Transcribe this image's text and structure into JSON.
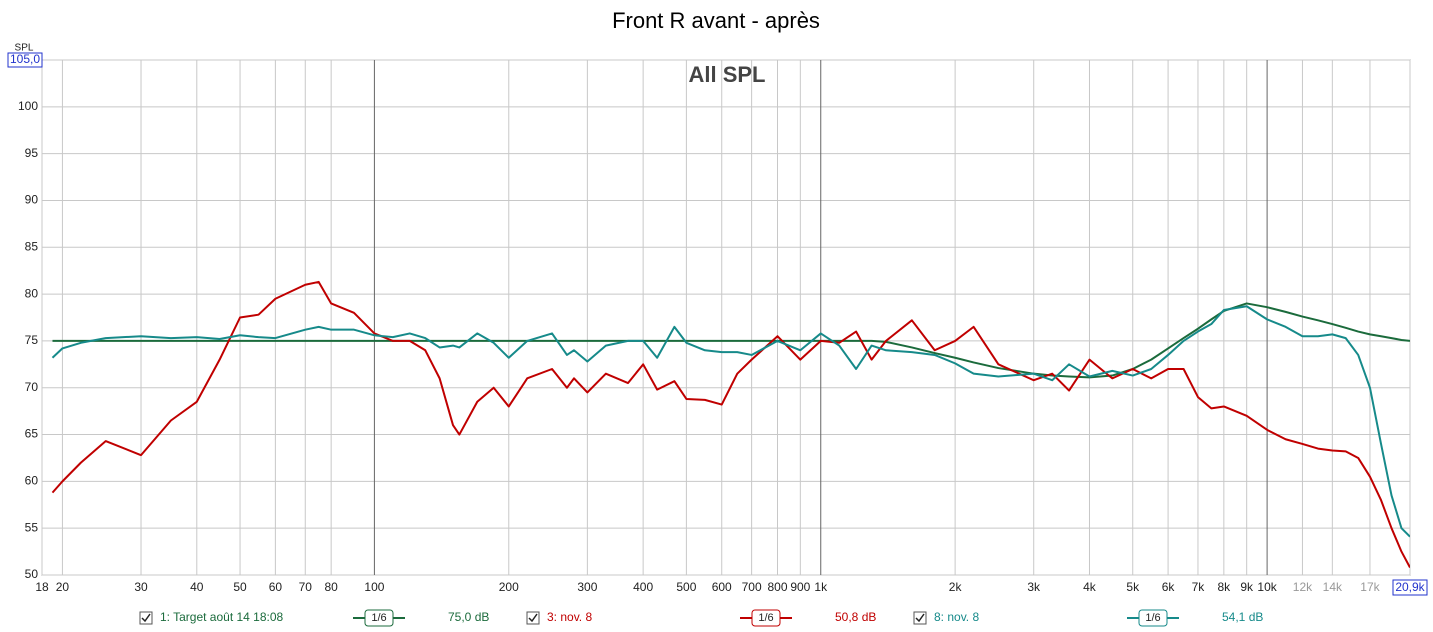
{
  "chart_data": {
    "type": "line",
    "title": "Front R avant - après",
    "subtitle": "All SPL",
    "y_label": "SPL",
    "x_scale": "log",
    "grid": true,
    "xlim": [
      18,
      20900
    ],
    "xticks": [
      18,
      20,
      30,
      40,
      50,
      60,
      70,
      80,
      100,
      200,
      300,
      400,
      500,
      600,
      700,
      800,
      900,
      {
        "value": 1000,
        "label": "1k"
      },
      {
        "value": 2000,
        "label": "2k"
      },
      {
        "value": 3000,
        "label": "3k"
      },
      {
        "value": 4000,
        "label": "4k"
      },
      {
        "value": 5000,
        "label": "5k"
      },
      {
        "value": 6000,
        "label": "6k"
      },
      {
        "value": 7000,
        "label": "7k"
      },
      {
        "value": 8000,
        "label": "8k"
      },
      {
        "value": 9000,
        "label": "9k"
      },
      {
        "value": 10000,
        "label": "10k"
      },
      {
        "value": 12000,
        "label": "12k"
      },
      {
        "value": 14000,
        "label": "14k"
      },
      {
        "value": 17000,
        "label": "17k"
      },
      {
        "value": 20900,
        "label": "20,9k"
      }
    ],
    "ylim": [
      50,
      105
    ],
    "yticks": [
      50,
      55,
      60,
      65,
      70,
      75,
      80,
      85,
      90,
      95,
      100,
      {
        "value": 105,
        "label": "105,0"
      }
    ],
    "x": [
      19,
      20,
      22,
      25,
      30,
      35,
      40,
      45,
      50,
      55,
      60,
      70,
      75,
      80,
      90,
      100,
      110,
      120,
      130,
      140,
      150,
      155,
      170,
      185,
      200,
      220,
      250,
      270,
      280,
      300,
      330,
      370,
      400,
      430,
      470,
      500,
      550,
      600,
      650,
      700,
      800,
      900,
      1000,
      1100,
      1200,
      1300,
      1400,
      1600,
      1800,
      2000,
      2200,
      2500,
      3000,
      3300,
      3600,
      4000,
      4500,
      5000,
      5500,
      6000,
      6500,
      7000,
      7500,
      8000,
      9000,
      10000,
      11000,
      12000,
      13000,
      14000,
      15000,
      16000,
      17000,
      18000,
      19000,
      20000,
      20900
    ],
    "series": [
      {
        "name": "1: Target août 14 18:08",
        "smoothing": "1/6",
        "level": "75,0 dB",
        "color": "#1b6b3c",
        "values": [
          75,
          75,
          75,
          75,
          75,
          75,
          75,
          75,
          75,
          75,
          75,
          75,
          75,
          75,
          75,
          75,
          75,
          75,
          75,
          75,
          75,
          75,
          75,
          75,
          75,
          75,
          75,
          75,
          75,
          75,
          75,
          75,
          75,
          75,
          75,
          75,
          75,
          75,
          75,
          75,
          75,
          75,
          75,
          75,
          75,
          75,
          74.9,
          74.3,
          73.7,
          73.2,
          72.7,
          72.1,
          71.5,
          71.3,
          71.2,
          71.1,
          71.3,
          72,
          73,
          74.2,
          75.3,
          76.3,
          77.3,
          78.2,
          79,
          78.6,
          78.1,
          77.6,
          77.2,
          76.8,
          76.4,
          76,
          75.7,
          75.5,
          75.3,
          75.1,
          75.0
        ]
      },
      {
        "name": "3: nov. 8",
        "smoothing": "1/6",
        "level": "50,8 dB",
        "color": "#c00000",
        "values": [
          58.8,
          60,
          62,
          64.3,
          62.8,
          66.5,
          68.5,
          73,
          77.5,
          77.8,
          79.5,
          81,
          81.3,
          79,
          78,
          75.8,
          75,
          75,
          74,
          71,
          66,
          65,
          68.5,
          70,
          68,
          71,
          72,
          70,
          71,
          69.5,
          71.5,
          70.5,
          72.5,
          69.8,
          70.7,
          68.8,
          68.7,
          68.2,
          71.5,
          73,
          75.5,
          73,
          75,
          74.8,
          76,
          73,
          75,
          77.2,
          74,
          75,
          76.5,
          72.5,
          70.8,
          71.5,
          69.7,
          73,
          71,
          72,
          71,
          72,
          72,
          69,
          67.8,
          68,
          67,
          65.5,
          64.5,
          64,
          63.5,
          63.3,
          63.2,
          62.5,
          60.5,
          58,
          55,
          52.5,
          50.8
        ]
      },
      {
        "name": "8: nov. 8",
        "smoothing": "1/6",
        "level": "54,1 dB",
        "color": "#168a8a",
        "values": [
          73.2,
          74.2,
          74.8,
          75.3,
          75.5,
          75.3,
          75.4,
          75.2,
          75.6,
          75.4,
          75.3,
          76.2,
          76.5,
          76.2,
          76.2,
          75.6,
          75.4,
          75.8,
          75.3,
          74.3,
          74.5,
          74.3,
          75.8,
          74.8,
          73.2,
          75,
          75.8,
          73.5,
          74,
          72.8,
          74.5,
          75,
          75,
          73.2,
          76.5,
          74.8,
          74,
          73.8,
          73.8,
          73.5,
          75,
          74,
          75.8,
          74.5,
          72,
          74.5,
          74,
          73.8,
          73.5,
          72.6,
          71.5,
          71.2,
          71.5,
          70.8,
          72.5,
          71.2,
          71.8,
          71.3,
          72,
          73.5,
          75,
          76,
          76.8,
          78.3,
          78.7,
          77.3,
          76.5,
          75.5,
          75.5,
          75.7,
          75.3,
          73.5,
          70,
          64,
          58.5,
          55,
          54.1
        ]
      }
    ]
  }
}
